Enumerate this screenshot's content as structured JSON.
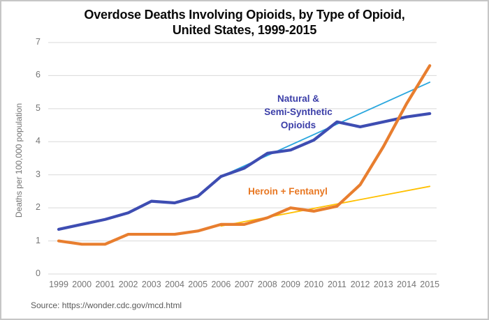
{
  "title_lines": [
    "Overdose Deaths Involving Opioids, by Type of Opioid,",
    "United States, 1999-2015"
  ],
  "source": "Source: https://wonder.cdc.gov/mcd.html",
  "colors": {
    "gridline": "#d9d9d9",
    "tick_text": "#757575",
    "title_text": "#0a0a0a",
    "source_text": "#595959",
    "natural_line": "#3e4db2",
    "natural_label": "#3b3ea8",
    "heroin_line": "#e87e2f",
    "heroin_label": "#e87722",
    "natural_trend": "#2aa7de",
    "heroin_trend": "#ffc000"
  },
  "chart_data": {
    "type": "line",
    "title": "Overdose Deaths Involving Opioids, by Type of Opioid, United States, 1999-2015",
    "xlabel": "",
    "ylabel": "Deaths per 100,000 population",
    "ylim": [
      0,
      7
    ],
    "y_ticks": [
      0,
      1,
      2,
      3,
      4,
      5,
      6,
      7
    ],
    "grid": true,
    "legend_position": "inline-labels",
    "categories": [
      "1999",
      "2000",
      "2001",
      "2002",
      "2003",
      "2004",
      "2005",
      "2006",
      "2007",
      "2008",
      "2009",
      "2010",
      "2011",
      "2012",
      "2013",
      "2014",
      "2015"
    ],
    "series": [
      {
        "name": "Natural & Semi-Synthetic Opioids",
        "color": "#3e4db2",
        "stroke_width": 4.2,
        "values": [
          1.35,
          1.5,
          1.65,
          1.85,
          2.2,
          2.15,
          2.35,
          2.95,
          3.2,
          3.65,
          3.75,
          4.05,
          4.6,
          4.45,
          4.6,
          4.75,
          4.85
        ]
      },
      {
        "name": "Heroin + Fentanyl",
        "color": "#e87e2f",
        "stroke_width": 4.2,
        "values": [
          1.0,
          0.9,
          0.9,
          1.2,
          1.2,
          1.2,
          1.3,
          1.5,
          1.5,
          1.7,
          2.0,
          1.9,
          2.05,
          2.7,
          3.85,
          5.15,
          6.3
        ]
      }
    ],
    "trendlines": [
      {
        "for": "Natural & Semi-Synthetic Opioids",
        "color": "#2aa7de",
        "stroke_width": 1.8,
        "from_x": 2006,
        "from_y": 2.95,
        "to_x": 2015,
        "to_y": 5.8
      },
      {
        "for": "Heroin + Fentanyl",
        "color": "#ffc000",
        "stroke_width": 1.8,
        "from_x": 2006,
        "from_y": 1.45,
        "to_x": 2015,
        "to_y": 2.65
      }
    ],
    "annotations": [
      {
        "id": "natural",
        "text_lines": [
          "Natural &",
          "Semi-Synthetic",
          "Opioids"
        ],
        "color": "#3b3ea8"
      },
      {
        "id": "heroin",
        "text_lines": [
          "Heroin + Fentanyl"
        ],
        "color": "#e87722"
      }
    ]
  }
}
